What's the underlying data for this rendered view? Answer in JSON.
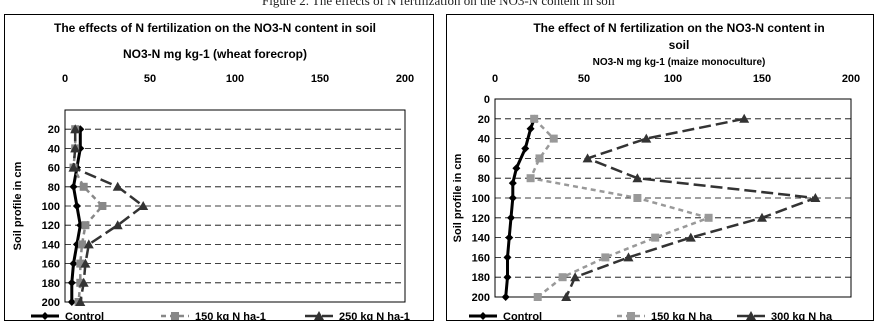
{
  "header_caption": "Figure 2. The effects of N fertilization on the NO3-N content in soil",
  "chart_data": [
    {
      "type": "line",
      "title": "The effects of N fertilization on the NO3-N content in soil",
      "xlabel": "NO3-N mg kg-1 (wheat forecrop)",
      "ylabel": "Soil profile in cm",
      "xlim": [
        0,
        200
      ],
      "ylim": [
        0,
        200
      ],
      "y_inverted": true,
      "x_ticks": [
        "0",
        "50",
        "100",
        "150",
        "200"
      ],
      "y_ticks": [
        "20",
        "40",
        "60",
        "80",
        "100",
        "120",
        "140",
        "160",
        "180",
        "200"
      ],
      "grid": "horizontal dashed",
      "legend": "bottom",
      "series": [
        {
          "name": "Control",
          "style": "solid",
          "marker": "diamond",
          "color": "#000000",
          "x": [
            9,
            9,
            7,
            5,
            7,
            9,
            7,
            5,
            4,
            4,
            5,
            7
          ],
          "y": [
            20,
            40,
            60,
            80,
            100,
            120,
            140,
            160,
            180,
            200,
            0,
            0
          ]
        },
        {
          "name": "150 kg N ha-1",
          "style": "dashed",
          "marker": "square",
          "color": "#888888",
          "x": [
            6,
            6,
            5,
            11,
            22,
            12,
            10,
            9,
            9,
            8
          ],
          "y": [
            20,
            40,
            60,
            80,
            100,
            120,
            140,
            160,
            180,
            200
          ]
        },
        {
          "name": "250 kg N ha-1",
          "style": "dashed",
          "marker": "triangle",
          "color": "#333333",
          "x": [
            6,
            6,
            5,
            31,
            46,
            31,
            14,
            12,
            11,
            9
          ],
          "y": [
            20,
            40,
            60,
            80,
            100,
            120,
            140,
            160,
            180,
            200
          ]
        }
      ]
    },
    {
      "type": "line",
      "title": "The effect of N fertilization on the NO3-N content in soil",
      "xlabel": "NO3-N mg kg-1 (maize monoculture)",
      "ylabel": "Soil profile in cm",
      "xlim": [
        0,
        200
      ],
      "ylim": [
        0,
        200
      ],
      "y_inverted": true,
      "x_ticks": [
        "0",
        "50",
        "100",
        "150",
        "200"
      ],
      "y_ticks": [
        "0",
        "20",
        "40",
        "60",
        "80",
        "100",
        "120",
        "140",
        "160",
        "180",
        "200"
      ],
      "grid": "horizontal dashed",
      "legend": "bottom",
      "series": [
        {
          "name": "Control",
          "style": "solid",
          "marker": "diamond",
          "color": "#000000",
          "x": [
            22,
            20,
            17,
            12,
            10,
            10,
            9,
            8,
            7,
            7,
            6
          ],
          "y": [
            20,
            30,
            50,
            70,
            85,
            100,
            120,
            140,
            160,
            180,
            200
          ]
        },
        {
          "name": "150 kg N ha",
          "style": "dashed",
          "marker": "square",
          "color": "#999999",
          "x": [
            22,
            33,
            25,
            20,
            80,
            120,
            90,
            62,
            38,
            24
          ],
          "y": [
            20,
            40,
            60,
            80,
            100,
            120,
            140,
            160,
            180,
            200
          ]
        },
        {
          "name": "300 kg N ha",
          "style": "dashed",
          "marker": "triangle",
          "color": "#333333",
          "x": [
            140,
            85,
            52,
            80,
            180,
            150,
            110,
            75,
            45,
            40
          ],
          "y": [
            20,
            40,
            60,
            80,
            100,
            120,
            140,
            160,
            180,
            200
          ]
        }
      ]
    }
  ]
}
